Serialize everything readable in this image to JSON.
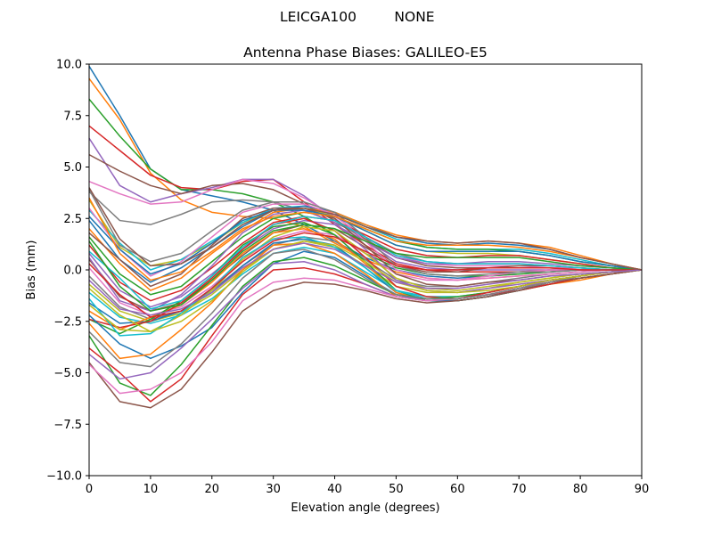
{
  "figure": {
    "suptitle_left": "LEICGA100",
    "suptitle_right": "NONE"
  },
  "chart_data": {
    "type": "line",
    "title": "Antenna Phase Biases: GALILEO-E5",
    "xlabel": "Elevation angle (degrees)",
    "ylabel": "Bias (mm)",
    "xlim": [
      0,
      90
    ],
    "ylim": [
      -10,
      10
    ],
    "xticks": [
      0,
      10,
      20,
      30,
      40,
      50,
      60,
      70,
      80,
      90
    ],
    "yticks": [
      -10.0,
      -7.5,
      -5.0,
      -2.5,
      0.0,
      2.5,
      5.0,
      7.5,
      10.0
    ],
    "xtick_labels": [
      "0",
      "10",
      "20",
      "30",
      "40",
      "50",
      "60",
      "70",
      "80",
      "90"
    ],
    "ytick_labels": [
      "−10.0",
      "−7.5",
      "−5.0",
      "−2.5",
      "0.0",
      "2.5",
      "5.0",
      "7.5",
      "10.0"
    ],
    "grid": false,
    "legend": "none",
    "x": [
      0,
      5,
      10,
      15,
      20,
      25,
      30,
      35,
      40,
      45,
      50,
      55,
      60,
      65,
      70,
      75,
      80,
      85,
      90
    ],
    "color_cycle": [
      "#1f77b4",
      "#ff7f0e",
      "#2ca02c",
      "#d62728",
      "#9467bd",
      "#8c564b",
      "#e377c2",
      "#7f7f7f",
      "#bcbd22",
      "#17becf"
    ],
    "series": [
      {
        "values": [
          9.9,
          7.5,
          4.9,
          3.9,
          3.6,
          3.3,
          2.9,
          2.2,
          1.4,
          0.6,
          0.0,
          -0.3,
          -0.4,
          -0.3,
          -0.2,
          -0.1,
          0.0,
          0.0,
          0.0
        ]
      },
      {
        "values": [
          9.3,
          7.3,
          4.7,
          3.4,
          2.8,
          2.6,
          2.5,
          2.1,
          1.3,
          0.5,
          -0.1,
          -0.4,
          -0.5,
          -0.4,
          -0.3,
          -0.2,
          -0.1,
          0.0,
          0.0
        ]
      },
      {
        "values": [
          8.3,
          6.5,
          4.9,
          3.9,
          3.9,
          3.7,
          3.3,
          2.6,
          1.7,
          0.8,
          0.1,
          -0.2,
          -0.3,
          -0.3,
          -0.2,
          -0.1,
          0.0,
          0.0,
          0.0
        ]
      },
      {
        "values": [
          7.0,
          5.8,
          4.6,
          4.0,
          3.9,
          4.3,
          4.4,
          3.3,
          2.2,
          1.2,
          0.3,
          0.0,
          -0.1,
          -0.1,
          -0.1,
          0.0,
          0.0,
          0.0,
          0.0
        ]
      },
      {
        "values": [
          6.4,
          4.1,
          3.3,
          3.7,
          4.0,
          4.4,
          4.4,
          3.6,
          2.5,
          1.4,
          0.4,
          0.1,
          0.0,
          0.0,
          0.0,
          0.0,
          0.0,
          0.0,
          0.0
        ]
      },
      {
        "values": [
          5.6,
          4.8,
          4.1,
          3.7,
          4.1,
          4.2,
          3.9,
          3.2,
          2.4,
          1.5,
          0.6,
          0.2,
          0.1,
          0.1,
          0.1,
          0.1,
          0.0,
          0.0,
          0.0
        ]
      },
      {
        "values": [
          4.3,
          3.7,
          3.2,
          3.3,
          3.9,
          4.4,
          4.2,
          3.5,
          2.6,
          1.6,
          0.7,
          0.3,
          0.2,
          0.2,
          0.2,
          0.1,
          0.1,
          0.0,
          0.0
        ]
      },
      {
        "values": [
          3.8,
          2.4,
          2.2,
          2.7,
          3.3,
          3.4,
          3.3,
          2.9,
          2.3,
          1.6,
          0.8,
          0.4,
          0.3,
          0.3,
          0.3,
          0.2,
          0.1,
          0.0,
          0.0
        ]
      },
      {
        "values": [
          3.4,
          1.1,
          0.2,
          0.5,
          1.3,
          2.3,
          2.9,
          3.0,
          2.6,
          1.9,
          1.2,
          0.9,
          0.8,
          0.8,
          0.7,
          0.5,
          0.3,
          0.1,
          0.0
        ]
      },
      {
        "values": [
          2.9,
          1.3,
          0.0,
          0.5,
          1.4,
          2.3,
          3.0,
          3.1,
          2.8,
          2.1,
          1.5,
          1.1,
          1.0,
          1.0,
          1.0,
          0.8,
          0.5,
          0.2,
          0.0
        ]
      },
      {
        "values": [
          2.4,
          0.5,
          -0.6,
          0.1,
          1.1,
          2.1,
          2.9,
          3.1,
          2.8,
          2.2,
          1.6,
          1.3,
          1.2,
          1.3,
          1.2,
          1.0,
          0.6,
          0.3,
          0.0
        ]
      },
      {
        "values": [
          2.0,
          0.3,
          -1.0,
          -0.4,
          0.8,
          1.9,
          2.8,
          3.0,
          2.8,
          2.2,
          1.7,
          1.4,
          1.3,
          1.4,
          1.3,
          1.1,
          0.7,
          0.3,
          0.0
        ]
      },
      {
        "values": [
          1.6,
          -0.2,
          -1.2,
          -0.8,
          0.4,
          1.6,
          2.5,
          2.8,
          2.6,
          2.0,
          1.4,
          1.1,
          1.0,
          1.0,
          0.9,
          0.7,
          0.4,
          0.2,
          0.0
        ]
      },
      {
        "values": [
          1.2,
          -0.6,
          -1.5,
          -1.0,
          0.1,
          1.3,
          2.3,
          2.6,
          2.4,
          1.7,
          1.0,
          0.7,
          0.6,
          0.7,
          0.7,
          0.5,
          0.3,
          0.1,
          0.0
        ]
      },
      {
        "values": [
          0.8,
          -1.0,
          -1.8,
          -1.3,
          -0.2,
          1.0,
          2.0,
          2.4,
          2.2,
          1.4,
          0.6,
          0.3,
          0.3,
          0.4,
          0.4,
          0.3,
          0.2,
          0.1,
          0.0
        ]
      },
      {
        "values": [
          0.5,
          -1.3,
          -2.0,
          -1.6,
          -0.5,
          0.7,
          1.8,
          2.2,
          2.0,
          1.1,
          0.2,
          -0.1,
          -0.1,
          0.1,
          0.2,
          0.2,
          0.1,
          0.0,
          0.0
        ]
      },
      {
        "values": [
          0.1,
          -1.6,
          -2.2,
          -1.8,
          -0.8,
          0.5,
          1.5,
          1.9,
          1.7,
          0.8,
          -0.2,
          -0.5,
          -0.5,
          -0.3,
          -0.1,
          0.0,
          0.0,
          0.0,
          0.0
        ]
      },
      {
        "values": [
          -0.3,
          -1.8,
          -2.4,
          -2.0,
          -1.0,
          0.2,
          1.2,
          1.6,
          1.4,
          0.5,
          -0.5,
          -0.8,
          -0.8,
          -0.6,
          -0.4,
          -0.2,
          -0.1,
          0.0,
          0.0
        ]
      },
      {
        "values": [
          -0.7,
          -2.0,
          -2.5,
          -2.1,
          -1.2,
          0.0,
          1.0,
          1.4,
          1.1,
          0.2,
          -0.8,
          -1.1,
          -1.1,
          -0.9,
          -0.6,
          -0.4,
          -0.2,
          -0.1,
          0.0
        ]
      },
      {
        "values": [
          -1.1,
          -2.3,
          -2.6,
          -2.2,
          -1.4,
          -0.2,
          0.8,
          1.1,
          0.8,
          -0.1,
          -1.0,
          -1.3,
          -1.3,
          -1.1,
          -0.8,
          -0.5,
          -0.3,
          -0.1,
          0.0
        ]
      },
      {
        "values": [
          -1.6,
          -2.6,
          -2.5,
          -2.0,
          -1.1,
          0.2,
          1.3,
          1.5,
          1.2,
          0.1,
          -1.1,
          -1.5,
          -1.5,
          -1.3,
          -0.9,
          -0.6,
          -0.4,
          -0.2,
          0.0
        ]
      },
      {
        "values": [
          -2.0,
          -2.9,
          -2.3,
          -1.7,
          -0.6,
          0.8,
          1.8,
          2.0,
          1.5,
          0.3,
          -1.1,
          -1.5,
          -1.5,
          -1.3,
          -1.0,
          -0.7,
          -0.5,
          -0.2,
          0.0
        ]
      },
      {
        "values": [
          -2.4,
          -3.1,
          -2.4,
          -1.5,
          -0.3,
          1.2,
          2.1,
          2.3,
          1.7,
          0.4,
          -1.0,
          -1.5,
          -1.5,
          -1.3,
          -1.0,
          -0.7,
          -0.4,
          -0.2,
          0.0
        ]
      },
      {
        "values": [
          -2.4,
          -2.8,
          -2.5,
          -1.6,
          -0.4,
          1.0,
          2.2,
          2.5,
          1.9,
          0.6,
          -0.8,
          -1.3,
          -1.4,
          -1.2,
          -1.0,
          -0.7,
          -0.4,
          -0.2,
          0.0
        ]
      },
      {
        "values": [
          0.6,
          -1.5,
          -2.0,
          -1.2,
          0.2,
          1.8,
          2.7,
          2.9,
          2.3,
          1.0,
          -0.5,
          -1.0,
          -1.1,
          -0.9,
          -0.7,
          -0.5,
          -0.3,
          -0.1,
          0.0
        ]
      },
      {
        "values": [
          1.8,
          0.5,
          -0.8,
          -0.2,
          1.2,
          2.5,
          3.0,
          3.0,
          2.5,
          1.2,
          -0.2,
          -0.7,
          -0.8,
          -0.6,
          -0.5,
          -0.3,
          -0.2,
          -0.1,
          0.0
        ]
      },
      {
        "values": [
          3.0,
          1.0,
          -0.3,
          0.4,
          1.6,
          2.8,
          3.2,
          3.2,
          2.7,
          1.4,
          0.0,
          -0.4,
          -0.5,
          -0.4,
          -0.3,
          -0.2,
          -0.1,
          0.0,
          0.0
        ]
      },
      {
        "values": [
          3.9,
          1.2,
          0.4,
          0.8,
          1.9,
          2.9,
          3.3,
          3.3,
          2.8,
          1.6,
          0.2,
          -0.2,
          -0.3,
          -0.2,
          -0.1,
          -0.1,
          0.0,
          0.0,
          0.0
        ]
      },
      {
        "values": [
          -0.9,
          -2.2,
          -3.0,
          -2.2,
          -1.0,
          0.5,
          1.6,
          2.1,
          1.9,
          0.8,
          -0.4,
          -0.9,
          -1.0,
          -0.8,
          -0.6,
          -0.4,
          -0.2,
          -0.1,
          0.0
        ]
      },
      {
        "values": [
          -1.4,
          -3.2,
          -3.1,
          -2.1,
          -0.9,
          0.6,
          1.5,
          1.6,
          1.1,
          0.1,
          -1.0,
          -1.4,
          -1.4,
          -1.2,
          -0.9,
          -0.6,
          -0.3,
          -0.1,
          0.0
        ]
      },
      {
        "values": [
          -2.2,
          -3.6,
          -4.3,
          -3.7,
          -2.8,
          -1.1,
          0.3,
          0.9,
          0.6,
          -0.3,
          -1.2,
          -1.5,
          -1.5,
          -1.3,
          -1.0,
          -0.6,
          -0.3,
          -0.1,
          0.0
        ]
      },
      {
        "values": [
          -2.6,
          -4.3,
          -4.1,
          -2.9,
          -1.6,
          0.0,
          1.2,
          1.3,
          0.8,
          -0.2,
          -1.3,
          -1.5,
          -1.4,
          -1.2,
          -0.9,
          -0.6,
          -0.3,
          -0.1,
          0.0
        ]
      },
      {
        "values": [
          -3.2,
          -5.5,
          -6.1,
          -4.6,
          -2.7,
          -0.8,
          0.4,
          0.6,
          0.2,
          -0.5,
          -1.2,
          -1.4,
          -1.3,
          -1.1,
          -0.8,
          -0.5,
          -0.3,
          -0.1,
          0.0
        ]
      },
      {
        "values": [
          -3.8,
          -5.0,
          -6.4,
          -5.3,
          -3.2,
          -1.2,
          0.0,
          0.1,
          -0.2,
          -0.7,
          -1.3,
          -1.5,
          -1.4,
          -1.1,
          -0.8,
          -0.5,
          -0.3,
          -0.1,
          0.0
        ]
      },
      {
        "values": [
          -4.1,
          -5.3,
          -5.0,
          -3.8,
          -2.4,
          -0.9,
          0.3,
          0.4,
          0.0,
          -0.7,
          -1.3,
          -1.5,
          -1.4,
          -1.2,
          -0.9,
          -0.5,
          -0.3,
          -0.1,
          0.0
        ]
      },
      {
        "values": [
          -4.5,
          -6.4,
          -6.7,
          -5.8,
          -4.0,
          -2.0,
          -1.0,
          -0.6,
          -0.7,
          -1.0,
          -1.4,
          -1.6,
          -1.5,
          -1.3,
          -1.0,
          -0.6,
          -0.4,
          -0.2,
          0.0
        ]
      },
      {
        "values": [
          -4.6,
          -6.0,
          -5.8,
          -5.0,
          -3.5,
          -1.5,
          -0.6,
          -0.4,
          -0.5,
          -0.9,
          -1.3,
          -1.5,
          -1.4,
          -1.2,
          -0.9,
          -0.6,
          -0.3,
          -0.1,
          0.0
        ]
      },
      {
        "values": [
          -3.0,
          -4.5,
          -4.7,
          -3.6,
          -2.1,
          -0.4,
          0.8,
          1.0,
          0.5,
          -0.4,
          -1.2,
          -1.4,
          -1.4,
          -1.2,
          -0.9,
          -0.6,
          -0.3,
          -0.1,
          0.0
        ]
      },
      {
        "values": [
          -1.7,
          -2.9,
          -3.0,
          -2.5,
          -1.5,
          -0.1,
          1.0,
          1.4,
          1.2,
          0.4,
          -0.6,
          -1.0,
          -1.1,
          -1.0,
          -0.8,
          -0.5,
          -0.3,
          -0.1,
          0.0
        ]
      },
      {
        "values": [
          0.9,
          -0.4,
          -1.9,
          -1.5,
          -0.3,
          1.1,
          2.2,
          2.6,
          2.4,
          1.6,
          0.7,
          0.4,
          0.3,
          0.3,
          0.3,
          0.2,
          0.1,
          0.0,
          0.0
        ]
      },
      {
        "values": [
          2.6,
          1.0,
          -0.2,
          0.3,
          1.3,
          2.4,
          2.9,
          2.9,
          2.6,
          1.9,
          1.2,
          0.9,
          0.9,
          0.9,
          0.9,
          0.7,
          0.4,
          0.2,
          0.0
        ]
      },
      {
        "values": [
          3.5,
          0.8,
          -0.5,
          -0.1,
          0.9,
          2.0,
          2.6,
          2.8,
          2.6,
          2.0,
          1.4,
          1.2,
          1.2,
          1.2,
          1.1,
          0.9,
          0.6,
          0.3,
          0.0
        ]
      },
      {
        "values": [
          1.4,
          -0.8,
          -2.0,
          -1.7,
          -0.5,
          0.9,
          1.9,
          2.2,
          2.0,
          1.4,
          0.8,
          0.6,
          0.6,
          0.6,
          0.6,
          0.4,
          0.2,
          0.1,
          0.0
        ]
      },
      {
        "values": [
          0.3,
          -1.2,
          -2.3,
          -2.0,
          -0.9,
          0.4,
          1.4,
          1.8,
          1.6,
          0.9,
          0.2,
          0.0,
          0.0,
          0.1,
          0.1,
          0.1,
          0.0,
          0.0,
          0.0
        ]
      },
      {
        "values": [
          -0.5,
          -1.9,
          -2.2,
          -1.9,
          -1.1,
          0.1,
          1.0,
          1.3,
          1.0,
          0.2,
          -0.6,
          -0.9,
          -0.9,
          -0.7,
          -0.5,
          -0.3,
          -0.2,
          -0.1,
          0.0
        ]
      },
      {
        "values": [
          4.0,
          1.5,
          0.2,
          0.3,
          1.1,
          2.2,
          2.9,
          3.0,
          2.7,
          2.1,
          1.6,
          1.4,
          1.3,
          1.4,
          1.3,
          1.0,
          0.6,
          0.3,
          0.0
        ]
      }
    ]
  }
}
